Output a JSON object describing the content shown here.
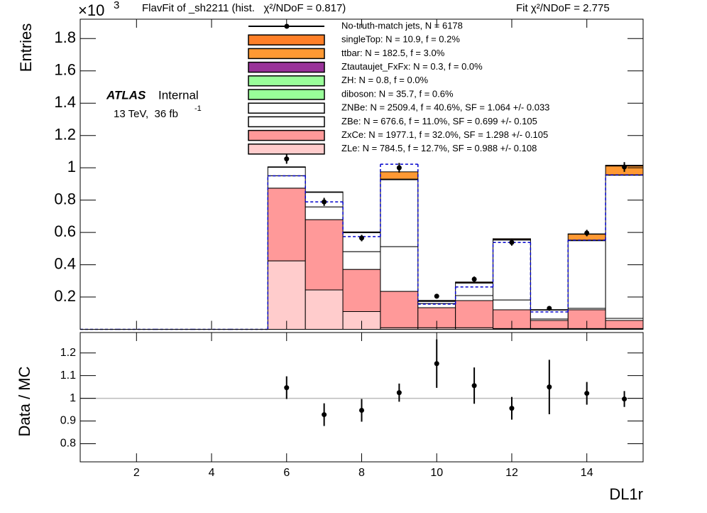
{
  "chart_data": [
    {
      "type": "histogram",
      "title": "FlavFit of _sh2211 (hist.   χ²/NDoF = 0.817)",
      "subtitle": "Fit χ²/NDoF = 2.775",
      "scale_label": "×10",
      "scale_exponent": "3",
      "atlas_label": "ATLAS",
      "atlas_status": "Internal",
      "energy_label": "13 TeV,  36 fb",
      "energy_exponent": "-1",
      "y_label": "Entries",
      "bins": [
        0.5,
        1.5,
        2.5,
        3.5,
        4.5,
        5.5,
        6.5,
        7.5,
        8.5,
        9.5,
        10.5,
        11.5,
        12.5,
        13.5,
        14.5,
        15.5
      ],
      "xlim": [
        0.5,
        15.5
      ],
      "xticks": [
        2,
        4,
        6,
        8,
        10,
        12,
        14
      ],
      "ylim": [
        0,
        1.92
      ],
      "yticks": [
        0.2,
        0.4,
        0.6,
        0.8,
        1,
        1.2,
        1.4,
        1.6,
        1.8
      ],
      "series": [
        {
          "name": "No-truth-match jets, N = 6178",
          "style": "points",
          "color": "#000000",
          "values": [
            null,
            null,
            null,
            null,
            null,
            1.055,
            0.789,
            0.565,
            1.0,
            0.205,
            0.31,
            0.538,
            0.13,
            0.596,
            1.005
          ],
          "errors": [
            null,
            null,
            null,
            null,
            null,
            0.03,
            0.025,
            0.02,
            0.03,
            0.014,
            0.017,
            0.02,
            0.011,
            0.02,
            0.03
          ]
        },
        {
          "name": "singleTop: N = 10.9, f = 0.2%",
          "color": "#ff7f27",
          "values": [
            0,
            0,
            0,
            0,
            0,
            0,
            0,
            0,
            0,
            0.002,
            0,
            0,
            0,
            0.002,
            0.005
          ]
        },
        {
          "name": "ttbar: N = 182.5, f = 3.0%",
          "color": "#ff9933",
          "values": [
            0,
            0,
            0,
            0,
            0,
            0,
            0,
            0.002,
            0.045,
            0.003,
            0.005,
            0.005,
            0.002,
            0.037,
            0.055
          ]
        },
        {
          "name": "Ztautaujet_FxFx: N = 0.3, f = 0.0%",
          "color": "#993399",
          "values": [
            0,
            0,
            0,
            0,
            0,
            0,
            0,
            0,
            0,
            0,
            0,
            0,
            0,
            0,
            0
          ]
        },
        {
          "name": "ZH: N = 0.8, f = 0.0%",
          "color": "#99ff99",
          "values": [
            0,
            0,
            0,
            0,
            0,
            0,
            0,
            0,
            0,
            0,
            0,
            0,
            0,
            0,
            0
          ]
        },
        {
          "name": "diboson: N = 35.7, f = 0.6%",
          "color": "#99ff99",
          "values": [
            0,
            0,
            0,
            0,
            0,
            0.003,
            0.003,
            0.003,
            0.004,
            0.001,
            0.002,
            0.003,
            0.001,
            0.003,
            0.002
          ]
        },
        {
          "name": "ZNBe: N = 2509.4, f = 40.6%, SF = 1.064 +/- 0.033",
          "color": "#ffffff",
          "values": [
            0,
            0,
            0,
            0,
            0,
            0.052,
            0.09,
            0.117,
            0.414,
            0.013,
            0.077,
            0.371,
            0.055,
            0.419,
            0.886
          ]
        },
        {
          "name": "ZBe: N = 676.6, f = 11.0%, SF = 0.699 +/- 0.105",
          "color": "#ffffff",
          "values": [
            0,
            0,
            0,
            0,
            0,
            0.077,
            0.079,
            0.11,
            0.277,
            0.026,
            0.031,
            0.061,
            0.009,
            0.009,
            0.013
          ]
        },
        {
          "name": "ZxCe: N = 1977.1, f = 32.0%, SF = 1.298 +/- 0.105",
          "color": "#ff9999",
          "values": [
            0,
            0,
            0,
            0,
            0,
            0.45,
            0.435,
            0.261,
            0.225,
            0.124,
            0.168,
            0.116,
            0.05,
            0.116,
            0.05
          ]
        },
        {
          "name": "ZLe: N = 784.5, f = 12.7%, SF = 0.988 +/- 0.108",
          "color": "#ffcccc",
          "values": [
            0,
            0,
            0,
            0,
            0,
            0.424,
            0.244,
            0.11,
            0.01,
            0.01,
            0.01,
            0.005,
            0.005,
            0.005,
            0.005
          ]
        }
      ],
      "dashed": {
        "color": "#0000cc",
        "values": [
          0,
          0,
          0,
          0,
          0,
          0.95,
          0.789,
          0.574,
          1.022,
          0.156,
          0.262,
          0.538,
          0.108,
          0.552,
          0.956
        ]
      }
    },
    {
      "type": "scatter",
      "x_label": "DL1r",
      "y_label": "Data / MC",
      "x": [
        6,
        7,
        8,
        9,
        10,
        11,
        12,
        13,
        14,
        15
      ],
      "values": [
        1.047,
        0.928,
        0.947,
        1.025,
        1.153,
        1.056,
        0.956,
        1.05,
        1.022,
        0.997
      ],
      "errors": [
        0.05,
        0.05,
        0.05,
        0.04,
        0.107,
        0.08,
        0.05,
        0.12,
        0.05,
        0.035
      ],
      "color": "#000000",
      "xlim": [
        0.5,
        15.5
      ],
      "xticks": [
        2,
        4,
        6,
        8,
        10,
        12,
        14
      ],
      "ylim": [
        0.72,
        1.29
      ],
      "yticks": [
        0.8,
        0.9,
        1,
        1.1,
        1.2
      ],
      "hline": 1,
      "hline_color": "#bbbbbb"
    }
  ]
}
